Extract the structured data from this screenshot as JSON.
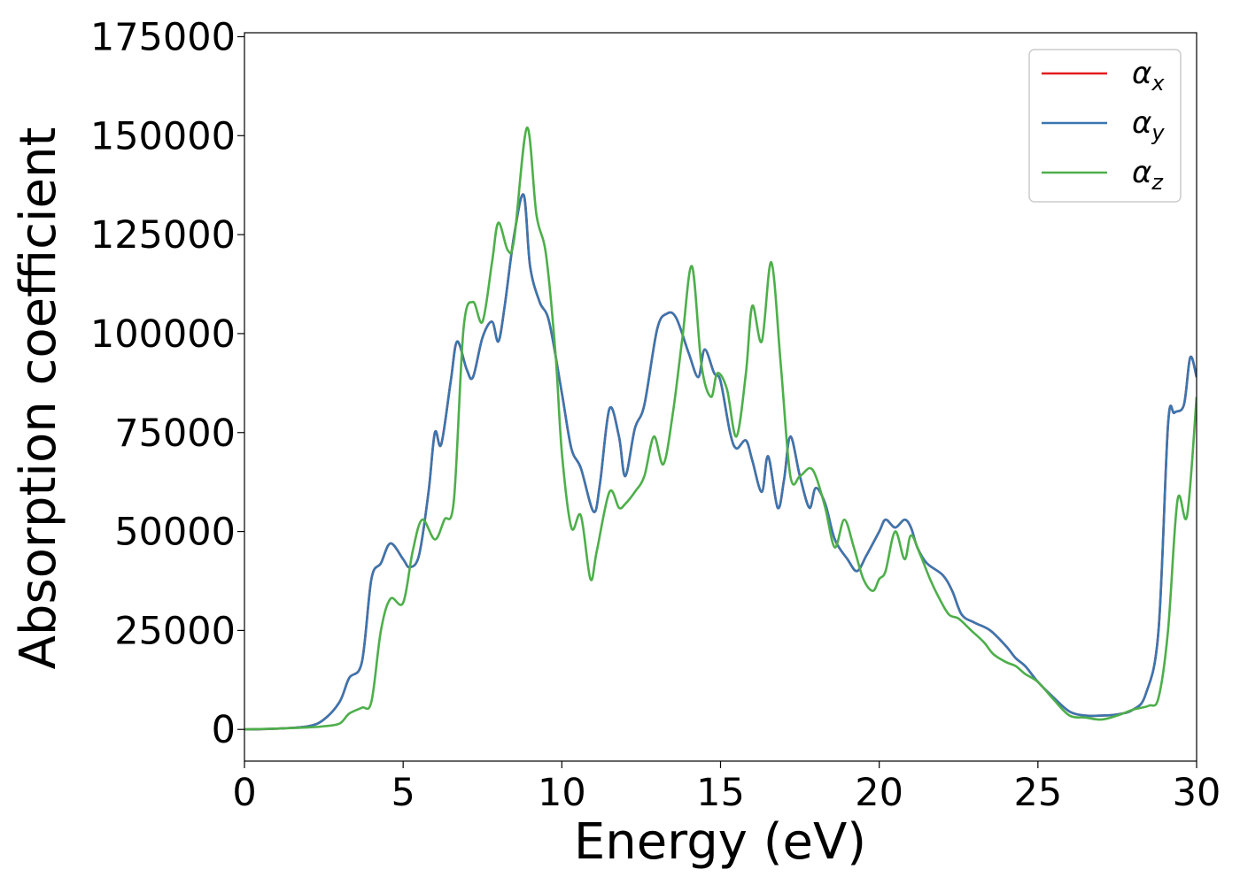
{
  "chart_data": {
    "type": "line",
    "title": "",
    "xlabel": "Energy (eV)",
    "ylabel": "Absorption coefficient",
    "xlim": [
      0,
      30
    ],
    "ylim": [
      -8000,
      176000
    ],
    "xticks": [
      0,
      5,
      10,
      15,
      20,
      25,
      30
    ],
    "yticks": [
      0,
      25000,
      50000,
      75000,
      100000,
      125000,
      150000,
      175000
    ],
    "grid": false,
    "legend": {
      "position": "top-right",
      "entries": [
        {
          "base": "α",
          "sub": "x"
        },
        {
          "base": "α",
          "sub": "y"
        },
        {
          "base": "α",
          "sub": "z"
        }
      ]
    },
    "series": [
      {
        "name": "αx",
        "color": "#e41a1c",
        "x": [
          0,
          1,
          2,
          2.5,
          3,
          3.3,
          3.7,
          4,
          4.3,
          4.6,
          5,
          5.2,
          5.5,
          5.8,
          6,
          6.2,
          6.5,
          6.7,
          7,
          7.2,
          7.5,
          7.8,
          8,
          8.2,
          8.5,
          8.8,
          9,
          9.3,
          9.6,
          10,
          10.3,
          10.6,
          11,
          11.2,
          11.5,
          11.8,
          12,
          12.3,
          12.6,
          13,
          13.3,
          13.6,
          14,
          14.3,
          14.5,
          14.8,
          15,
          15.3,
          15.5,
          15.8,
          16,
          16.3,
          16.5,
          16.8,
          17,
          17.2,
          17.5,
          17.8,
          18,
          18.3,
          18.6,
          19,
          19.3,
          19.6,
          20,
          20.2,
          20.5,
          20.8,
          21,
          21.2,
          21.5,
          22,
          22.3,
          22.6,
          23,
          23.5,
          24,
          24.3,
          24.6,
          25,
          25.5,
          26,
          26.5,
          27,
          27.5,
          28,
          28.4,
          28.8,
          29.1,
          29.3,
          29.6,
          29.8,
          30
        ],
        "values": [
          0,
          200,
          800,
          2500,
          7000,
          13000,
          17000,
          38000,
          42000,
          47000,
          43000,
          41000,
          44000,
          60000,
          75000,
          72000,
          88000,
          98000,
          91000,
          89000,
          99000,
          103000,
          98000,
          107000,
          125000,
          135000,
          117000,
          108000,
          103000,
          85000,
          71000,
          66000,
          55000,
          62000,
          81000,
          74000,
          64000,
          76000,
          82000,
          101000,
          105000,
          104000,
          95000,
          89000,
          96000,
          90000,
          88000,
          75000,
          71000,
          73000,
          68000,
          60000,
          69000,
          56000,
          63000,
          74000,
          64000,
          56000,
          61000,
          57000,
          48000,
          43000,
          40000,
          44000,
          50000,
          53000,
          51000,
          53000,
          51000,
          46000,
          42000,
          39000,
          35000,
          29000,
          27000,
          25000,
          21000,
          18000,
          16000,
          12000,
          8000,
          4500,
          3500,
          3500,
          3800,
          5000,
          9000,
          25000,
          77000,
          80000,
          82000,
          94000,
          89000
        ]
      },
      {
        "name": "αy",
        "color": "#3a76af",
        "x": [
          0,
          1,
          2,
          2.5,
          3,
          3.3,
          3.7,
          4,
          4.3,
          4.6,
          5,
          5.2,
          5.5,
          5.8,
          6,
          6.2,
          6.5,
          6.7,
          7,
          7.2,
          7.5,
          7.8,
          8,
          8.2,
          8.5,
          8.8,
          9,
          9.3,
          9.6,
          10,
          10.3,
          10.6,
          11,
          11.2,
          11.5,
          11.8,
          12,
          12.3,
          12.6,
          13,
          13.3,
          13.6,
          14,
          14.3,
          14.5,
          14.8,
          15,
          15.3,
          15.5,
          15.8,
          16,
          16.3,
          16.5,
          16.8,
          17,
          17.2,
          17.5,
          17.8,
          18,
          18.3,
          18.6,
          19,
          19.3,
          19.6,
          20,
          20.2,
          20.5,
          20.8,
          21,
          21.2,
          21.5,
          22,
          22.3,
          22.6,
          23,
          23.5,
          24,
          24.3,
          24.6,
          25,
          25.5,
          26,
          26.5,
          27,
          27.5,
          28,
          28.4,
          28.8,
          29.1,
          29.3,
          29.6,
          29.8,
          30
        ],
        "values": [
          0,
          200,
          800,
          2500,
          7000,
          13000,
          17000,
          38000,
          42000,
          47000,
          43000,
          41000,
          44000,
          60000,
          75000,
          72000,
          88000,
          98000,
          91000,
          89000,
          99000,
          103000,
          98000,
          107000,
          125000,
          135000,
          117000,
          108000,
          103000,
          85000,
          71000,
          66000,
          55000,
          62000,
          81000,
          74000,
          64000,
          76000,
          82000,
          101000,
          105000,
          104000,
          95000,
          89000,
          96000,
          90000,
          88000,
          75000,
          71000,
          73000,
          68000,
          60000,
          69000,
          56000,
          63000,
          74000,
          64000,
          56000,
          61000,
          57000,
          48000,
          43000,
          40000,
          44000,
          50000,
          53000,
          51000,
          53000,
          51000,
          46000,
          42000,
          39000,
          35000,
          29000,
          27000,
          25000,
          21000,
          18000,
          16000,
          12000,
          8000,
          4500,
          3500,
          3500,
          3800,
          5000,
          9000,
          25000,
          77000,
          80000,
          82000,
          94000,
          89000
        ]
      },
      {
        "name": "αz",
        "color": "#4daf4a",
        "x": [
          0,
          1,
          2,
          2.5,
          3,
          3.3,
          3.7,
          4,
          4.3,
          4.6,
          5,
          5.3,
          5.6,
          6,
          6.3,
          6.6,
          6.9,
          7.2,
          7.5,
          7.8,
          8,
          8.3,
          8.5,
          8.9,
          9.2,
          9.5,
          9.8,
          10,
          10.3,
          10.6,
          10.9,
          11.1,
          11.5,
          11.8,
          12,
          12.3,
          12.6,
          12.9,
          13.2,
          13.5,
          13.8,
          14.1,
          14.4,
          14.7,
          14.9,
          15.2,
          15.5,
          15.8,
          16,
          16.3,
          16.6,
          16.9,
          17.2,
          17.5,
          17.8,
          18,
          18.3,
          18.6,
          18.9,
          19.2,
          19.5,
          19.8,
          20,
          20.2,
          20.5,
          20.8,
          21,
          21.3,
          21.6,
          21.9,
          22.2,
          22.5,
          22.9,
          23.3,
          23.6,
          24,
          24.3,
          24.6,
          25,
          25.5,
          26,
          26.5,
          27,
          27.5,
          28,
          28.5,
          28.8,
          29.1,
          29.4,
          29.7,
          30
        ],
        "values": [
          0,
          200,
          500,
          800,
          1500,
          4000,
          5500,
          7000,
          25000,
          33000,
          32000,
          45000,
          53000,
          48000,
          53000,
          58000,
          101000,
          108000,
          103000,
          118000,
          128000,
          121000,
          124000,
          152000,
          130000,
          120000,
          95000,
          70000,
          51000,
          54000,
          38000,
          45000,
          60000,
          56000,
          57000,
          60000,
          64000,
          74000,
          67000,
          80000,
          99000,
          117000,
          92000,
          84000,
          90000,
          86000,
          74000,
          90000,
          107000,
          98000,
          118000,
          92000,
          64000,
          64000,
          66000,
          64000,
          56000,
          46000,
          53000,
          46000,
          38000,
          35000,
          38000,
          40000,
          50000,
          43000,
          49000,
          44000,
          38000,
          33000,
          29000,
          28000,
          25000,
          22000,
          19000,
          17000,
          16000,
          14000,
          12000,
          7500,
          3500,
          3000,
          2500,
          3500,
          5000,
          6000,
          8000,
          25000,
          58000,
          54000,
          84000
        ]
      }
    ]
  }
}
